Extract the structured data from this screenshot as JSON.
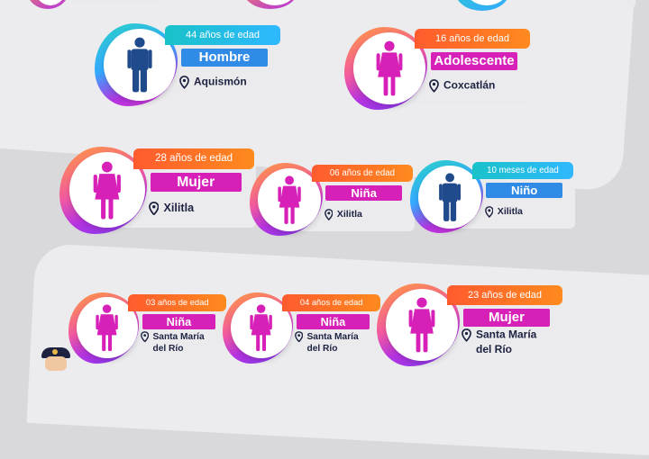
{
  "cards": [
    {
      "id": "hombre-aquismon",
      "age": "44 años de edad",
      "label": "Hombre",
      "location": "Aquismón",
      "gender": "male",
      "colors": {
        "age": "#19c2c9",
        "label": "#2f8be6",
        "figure": "#1f4a8c"
      }
    },
    {
      "id": "adolescente-coxcatlan",
      "age": "16 años de edad",
      "label": "Adolescente",
      "location": "Coxcatlán",
      "gender": "female",
      "colors": {
        "age": "#ff6a2a",
        "label": "#d720b7",
        "figure": "#d720b7"
      }
    },
    {
      "id": "mujer-xilitla",
      "age": "28 años de edad",
      "label": "Mujer",
      "location": "Xilitla",
      "gender": "female",
      "colors": {
        "age": "#ff6a2a",
        "label": "#d720b7",
        "figure": "#d720b7"
      }
    },
    {
      "id": "nina-xilitla",
      "age": "06 años de edad",
      "label": "Niña",
      "location": "Xilitla",
      "gender": "female",
      "colors": {
        "age": "#ff6a2a",
        "label": "#d720b7",
        "figure": "#d720b7"
      }
    },
    {
      "id": "nino-xilitla",
      "age": "10 meses de edad",
      "label": "Niño",
      "location": "Xilitla",
      "gender": "male",
      "colors": {
        "age": "#19c2c9",
        "label": "#2f8be6",
        "figure": "#1f4a8c"
      }
    },
    {
      "id": "nina-santa-maria-1",
      "age": "03 años de edad",
      "label": "Niña",
      "location": "Santa María del Río",
      "gender": "female",
      "colors": {
        "age": "#ff6a2a",
        "label": "#d720b7",
        "figure": "#d720b7"
      }
    },
    {
      "id": "nina-santa-maria-2",
      "age": "04 años de edad",
      "label": "Niña",
      "location": "Santa María del Río",
      "gender": "female",
      "colors": {
        "age": "#ff6a2a",
        "label": "#d720b7",
        "figure": "#d720b7"
      }
    },
    {
      "id": "mujer-santa-maria",
      "age": "23 años de edad",
      "label": "Mujer",
      "location": "Santa María del Río",
      "gender": "female",
      "colors": {
        "age": "#ff6a2a",
        "label": "#d720b7",
        "figure": "#d720b7"
      }
    }
  ],
  "location_lines": {
    "santa_maria": [
      "Santa María",
      "del Río"
    ]
  }
}
